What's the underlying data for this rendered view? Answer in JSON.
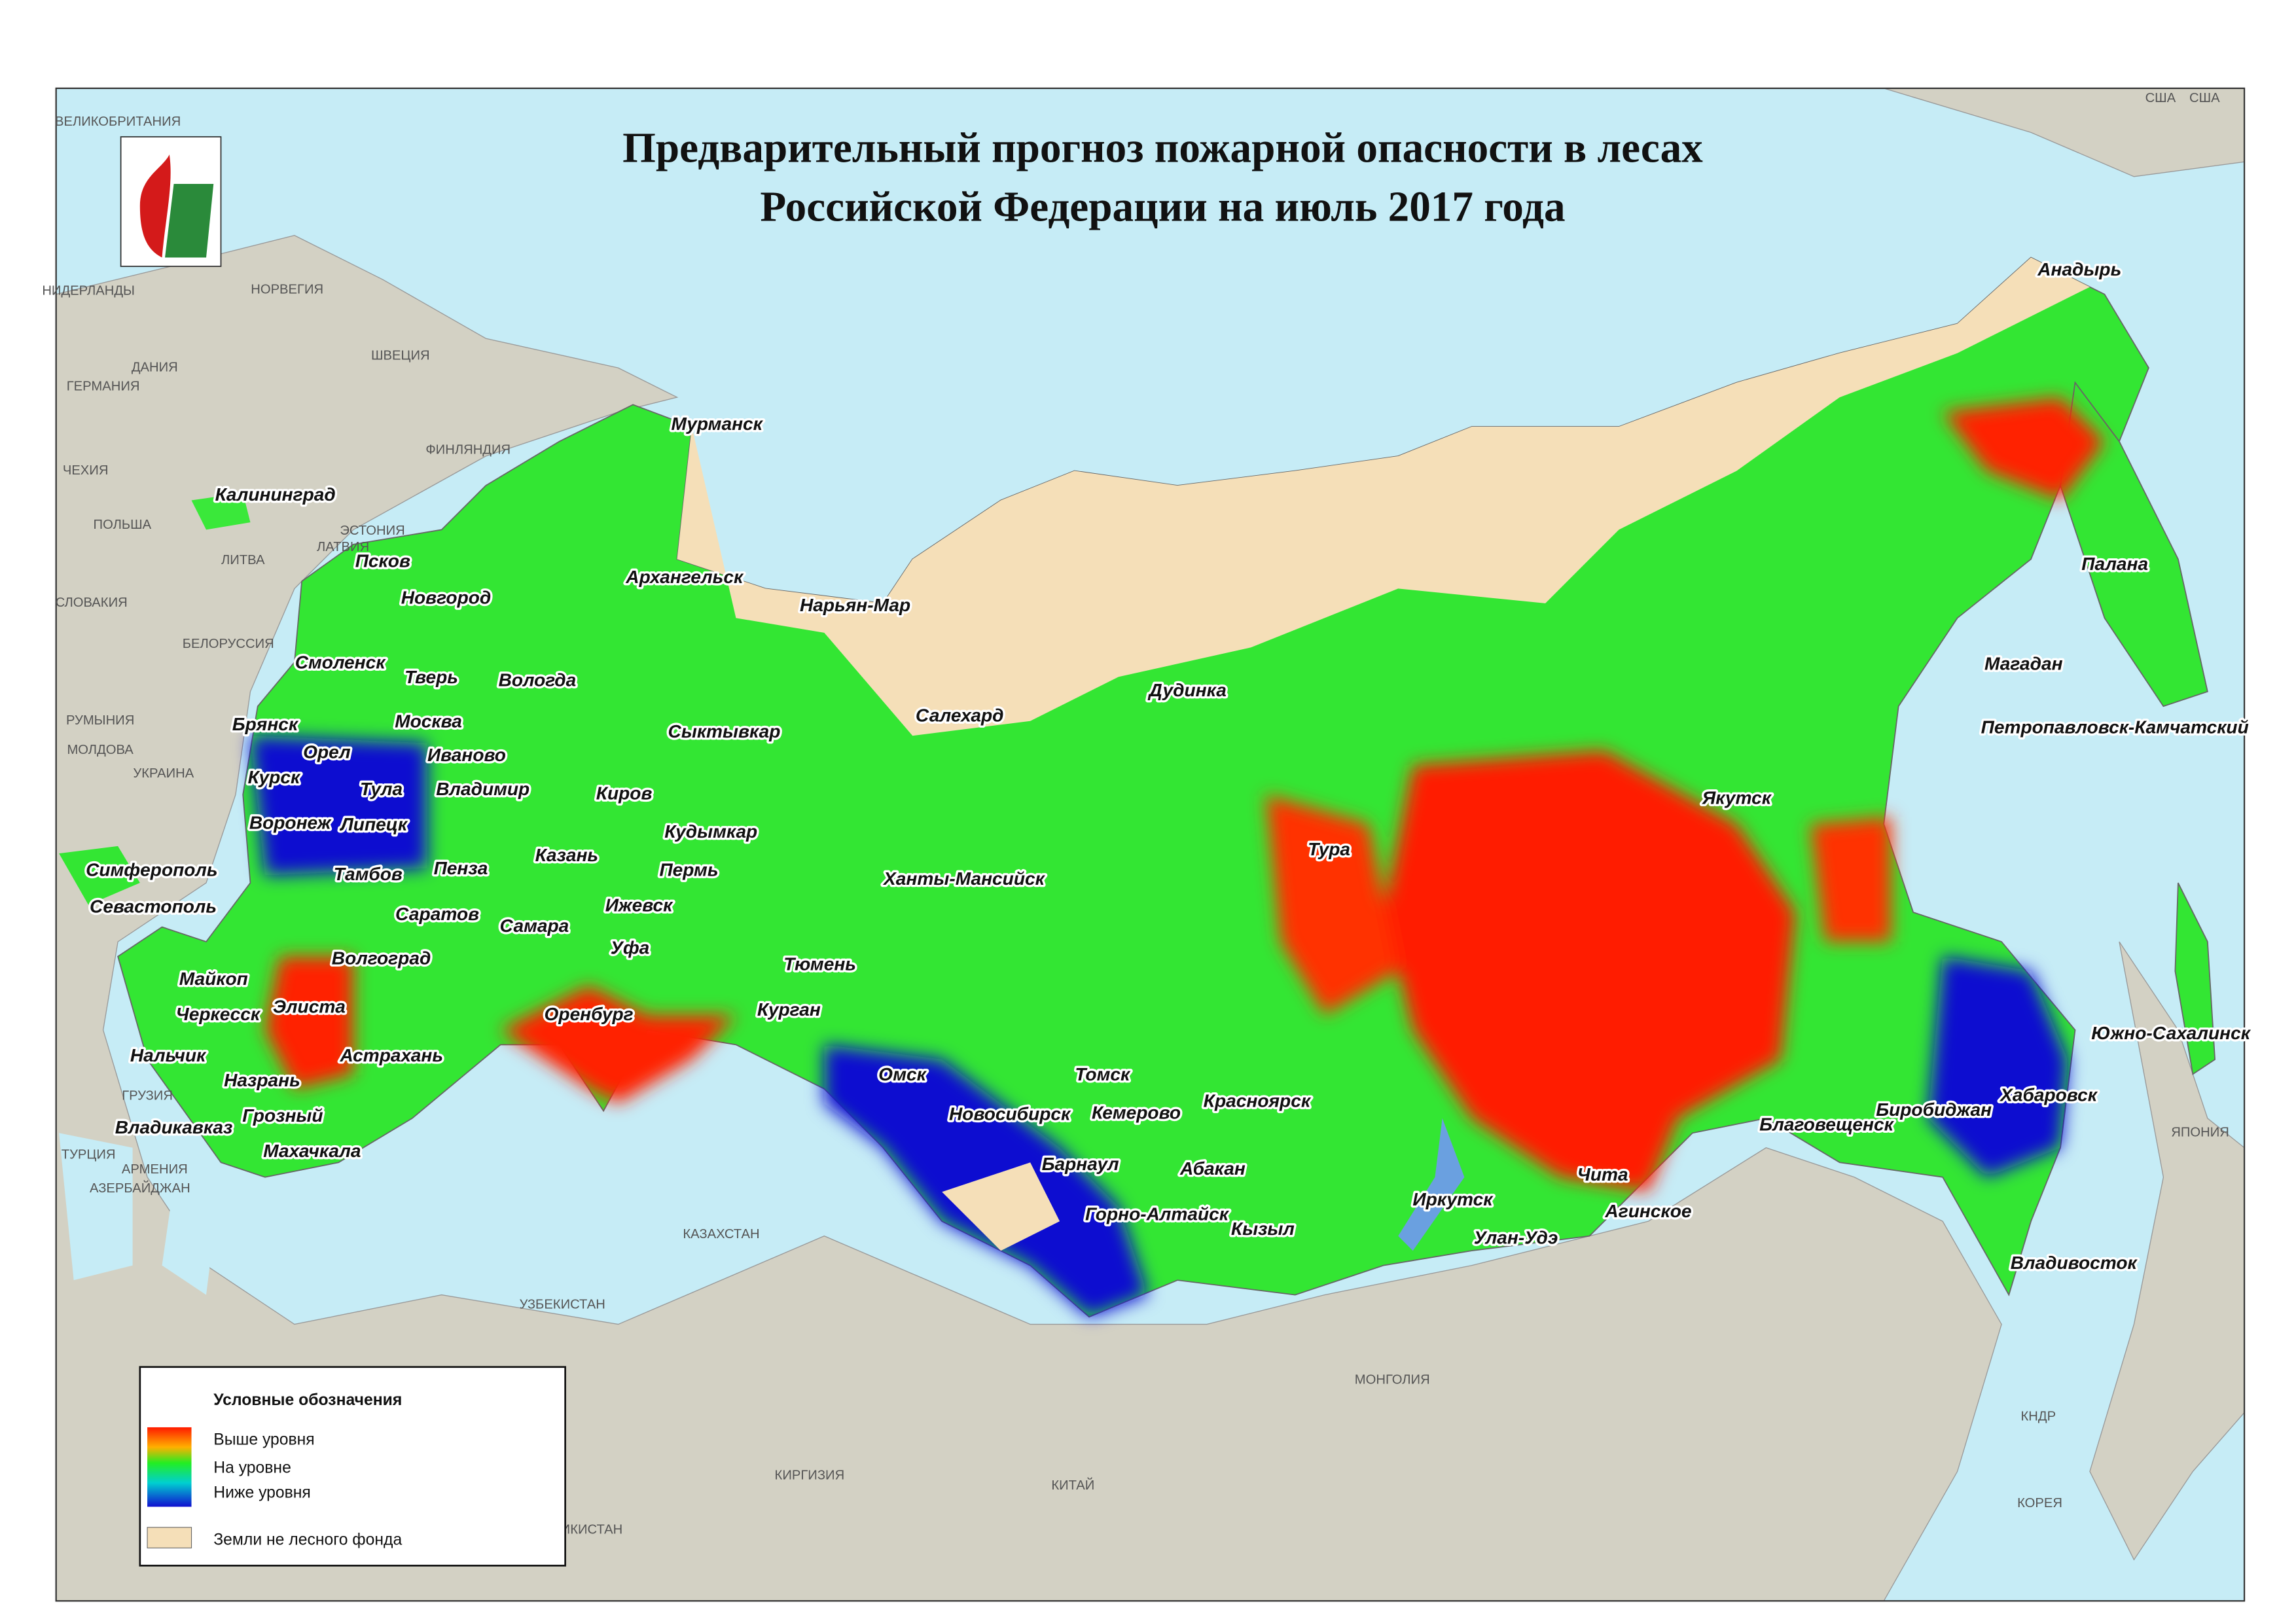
{
  "title": {
    "lines": [
      "Предварительный прогноз пожарной опасности в лесах",
      "Российской Федерации на июль 2017 года"
    ]
  },
  "cities": [
    "Мурманск",
    "Калининград",
    "Псков",
    "Новгород",
    "Архангельск",
    "Нарьян-Мар",
    "Смоленск",
    "Тверь",
    "Вологда",
    "Брянск",
    "Москва",
    "Салехард",
    "Дудинка",
    "Сыктывкар",
    "Орел",
    "Иваново",
    "Курск",
    "Тула",
    "Владимир",
    "Киров",
    "Якутск",
    "Воронеж",
    "Липецк",
    "Кудымкар",
    "Тура",
    "Симферополь",
    "Казань",
    "Тамбов",
    "Пенза",
    "Пермь",
    "Ханты-Мансийск",
    "Севастополь",
    "Саратов",
    "Ижевск",
    "Самара",
    "Уфа",
    "Волгоград",
    "Тюмень",
    "Майкоп",
    "Элиста",
    "Оренбург",
    "Курган",
    "Черкесск",
    "Омск",
    "Томск",
    "Нальчик",
    "Астрахань",
    "Назрань",
    "Красноярск",
    "Хабаровск",
    "Южно-Сахалинск",
    "Благовещенск",
    "Биробиджан",
    "Новосибирск",
    "Кемерово",
    "Грозный",
    "Владикавказ",
    "Махачкала",
    "Барнаул",
    "Абакан",
    "Чита",
    "Иркутск",
    "Агинское",
    "Горно-Алтайск",
    "Кызыл",
    "Улан-Удэ",
    "Владивосток",
    "Анадырь",
    "Палана",
    "Магадан",
    "Петропавловск-Камчатский"
  ],
  "countries": [
    "НОРВЕГИЯ",
    "ШВЕЦИЯ",
    "ФИНЛЯНДИЯ",
    "ЭСТОНИЯ",
    "ЛАТВИЯ",
    "ЛИТВА",
    "ПОЛЬША",
    "БЕЛОРУССИЯ",
    "УКРАИНА",
    "МОЛДОВА",
    "РУМЫНИЯ",
    "СЛОВАКИЯ",
    "ЧЕХИЯ",
    "ГЕРМАНИЯ",
    "НИДЕРЛАНДЫ",
    "ДАНИЯ",
    "ВЕЛИКОБРИТАНИЯ",
    "КАЗАХСТАН",
    "УЗБЕКИСТАН",
    "МОНГОЛИЯ",
    "КИТАЙ",
    "КИРГИЗИЯ",
    "ТАДЖИКИСТАН",
    "КНДР",
    "КОРЕЯ",
    "ЯПОНИЯ",
    "США",
    "США",
    "ГРУЗИЯ",
    "АРМЕНИЯ",
    "АЗЕРБАЙДЖАН",
    "ТУРЦИЯ"
  ],
  "legend": {
    "title": "Условные обозначения",
    "items": [
      "Выше уровня",
      "На уровне",
      "Ниже уровня",
      "Земли не лесного фонда"
    ]
  }
}
